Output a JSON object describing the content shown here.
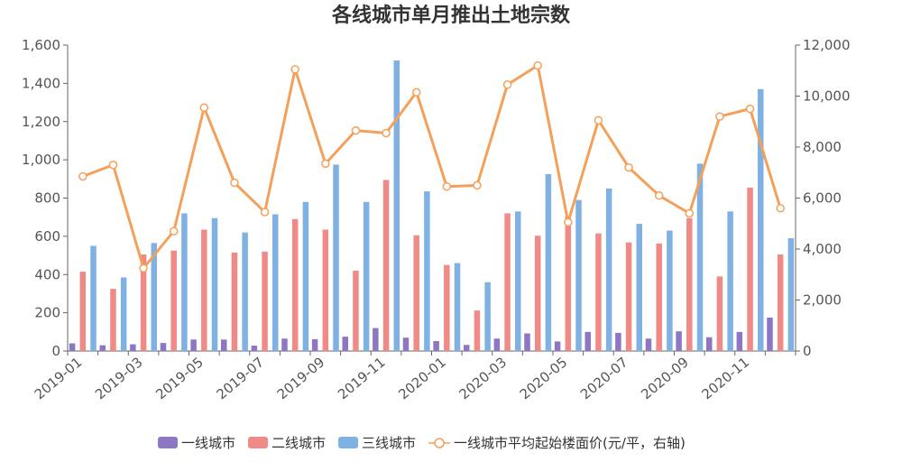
{
  "chart_data": {
    "type": "bar",
    "title": "各线城市单月推出土地宗数",
    "categories": [
      "2019-01",
      "2019-02",
      "2019-03",
      "2019-04",
      "2019-05",
      "2019-06",
      "2019-07",
      "2019-08",
      "2019-09",
      "2019-10",
      "2019-11",
      "2019-12",
      "2020-01",
      "2020-02",
      "2020-03",
      "2020-04",
      "2020-05",
      "2020-06",
      "2020-07",
      "2020-08",
      "2020-09",
      "2020-10",
      "2020-11",
      "2020-12"
    ],
    "x_tick_labels": [
      "2019-01",
      "2019-03",
      "2019-05",
      "2019-07",
      "2019-09",
      "2019-11",
      "2020-01",
      "2020-03",
      "2020-05",
      "2020-07",
      "2020-09",
      "2020-11"
    ],
    "y_left": {
      "ylim": [
        0,
        1600
      ],
      "ticks": [
        "0",
        "200",
        "400",
        "600",
        "800",
        "1,000",
        "1,200",
        "1,400",
        "1,600"
      ]
    },
    "y_right": {
      "ylim": [
        0,
        12000
      ],
      "ticks": [
        "0",
        "2,000",
        "4,000",
        "6,000",
        "8,000",
        "10,000",
        "12,000"
      ]
    },
    "grid": false,
    "legend_position": "bottom",
    "series": [
      {
        "name": "一线城市",
        "type": "bar",
        "axis": "left",
        "color": "#8d77c4",
        "values": [
          40,
          30,
          35,
          42,
          60,
          60,
          28,
          65,
          62,
          75,
          120,
          70,
          52,
          32,
          65,
          92,
          50,
          100,
          95,
          65,
          103,
          72,
          100,
          175
        ]
      },
      {
        "name": "二线城市",
        "type": "bar",
        "axis": "left",
        "color": "#f08a87",
        "values": [
          415,
          325,
          505,
          525,
          635,
          515,
          520,
          690,
          635,
          420,
          895,
          605,
          450,
          212,
          720,
          603,
          705,
          615,
          568,
          562,
          695,
          390,
          855,
          505
        ]
      },
      {
        "name": "三线城市",
        "type": "bar",
        "axis": "left",
        "color": "#7fb2e3",
        "values": [
          550,
          385,
          565,
          720,
          695,
          620,
          715,
          780,
          975,
          780,
          1520,
          835,
          460,
          360,
          730,
          925,
          790,
          850,
          665,
          630,
          980,
          730,
          1370,
          590
        ]
      },
      {
        "name": "一线城市平均起始楼面价(元/平，右轴)",
        "type": "line",
        "axis": "right",
        "color": "#f5a05a",
        "values": [
          6850,
          7300,
          3250,
          4700,
          9550,
          6600,
          5450,
          11050,
          7350,
          8650,
          8550,
          10150,
          6450,
          6500,
          10450,
          11200,
          5050,
          9050,
          7200,
          6100,
          5400,
          9200,
          9500,
          5600
        ]
      }
    ]
  }
}
